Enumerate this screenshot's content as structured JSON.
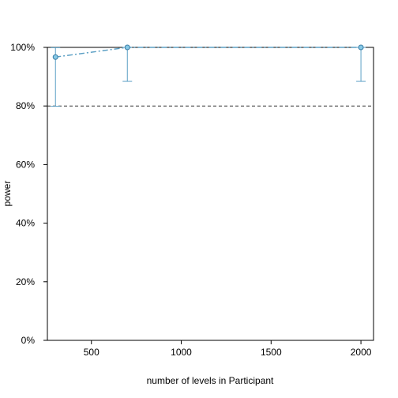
{
  "chart_data": {
    "type": "line",
    "title": "",
    "xlabel": "number of levels in Participant",
    "ylabel": "power",
    "xlim": [
      255,
      2070
    ],
    "ylim": [
      0,
      100
    ],
    "x_ticks": [
      500,
      1000,
      1500,
      2000
    ],
    "x_tick_labels": [
      "500",
      "1000",
      "1500",
      "2000"
    ],
    "y_ticks": [
      0,
      20,
      40,
      60,
      80,
      100
    ],
    "y_tick_labels": [
      "0%",
      "20%",
      "40%",
      "60%",
      "80%",
      "100%"
    ],
    "reference_line": {
      "y": 80,
      "style": "dashed",
      "color": "#333333"
    },
    "grid": false,
    "legend": "none",
    "series": [
      {
        "x": [
          300,
          700,
          2000
        ],
        "y": [
          96.7,
          100,
          100
        ],
        "ci_low": [
          79.9,
          88.4,
          88.4
        ],
        "ci_high": [
          99.9,
          100,
          100
        ],
        "line_color": "#5b9fc4",
        "marker_fill": "#86c9e6",
        "marker_edge": "#3a7ca5"
      }
    ]
  }
}
